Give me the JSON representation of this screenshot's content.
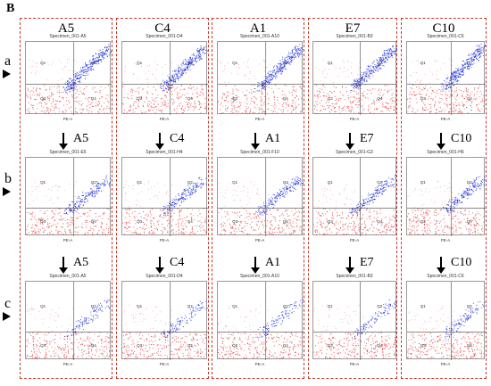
{
  "panel_letter": "B",
  "rows": [
    {
      "label": "a"
    },
    {
      "label": "b"
    },
    {
      "label": "c"
    }
  ],
  "x_axis_label": "PE-A",
  "quadrant_labels": [
    "Q1",
    "Q2",
    "Q3",
    "Q4"
  ],
  "colors": {
    "box_border": "#c0392b",
    "negative": "#e03030",
    "positive": "#2030d8"
  },
  "columns": [
    {
      "title": "A5",
      "row_titles": [
        "",
        "A5",
        "A5"
      ],
      "specimens": [
        "Specimen_001-A5",
        "Specimen_001-E5",
        "Specimen_001-A5"
      ]
    },
    {
      "title": "C4",
      "row_titles": [
        "",
        "C4",
        "C4"
      ],
      "specimens": [
        "Specimen_001-D4",
        "Specimen_001-H4",
        "Specimen_001-D4"
      ]
    },
    {
      "title": "A1",
      "row_titles": [
        "",
        "A1",
        "A1"
      ],
      "specimens": [
        "Specimen_001-A10",
        "Specimen_001-F10",
        "Specimen_001-A10"
      ]
    },
    {
      "title": "E7",
      "row_titles": [
        "",
        "E7",
        "E7"
      ],
      "specimens": [
        "Specimen_001-B3",
        "Specimen_001-G3",
        "Specimen_001-B3"
      ]
    },
    {
      "title": "C10",
      "row_titles": [
        "",
        "C10",
        "C10"
      ],
      "specimens": [
        "Specimen_001-C6",
        "Specimen_001-H6",
        "Specimen_001-C6"
      ]
    }
  ]
}
